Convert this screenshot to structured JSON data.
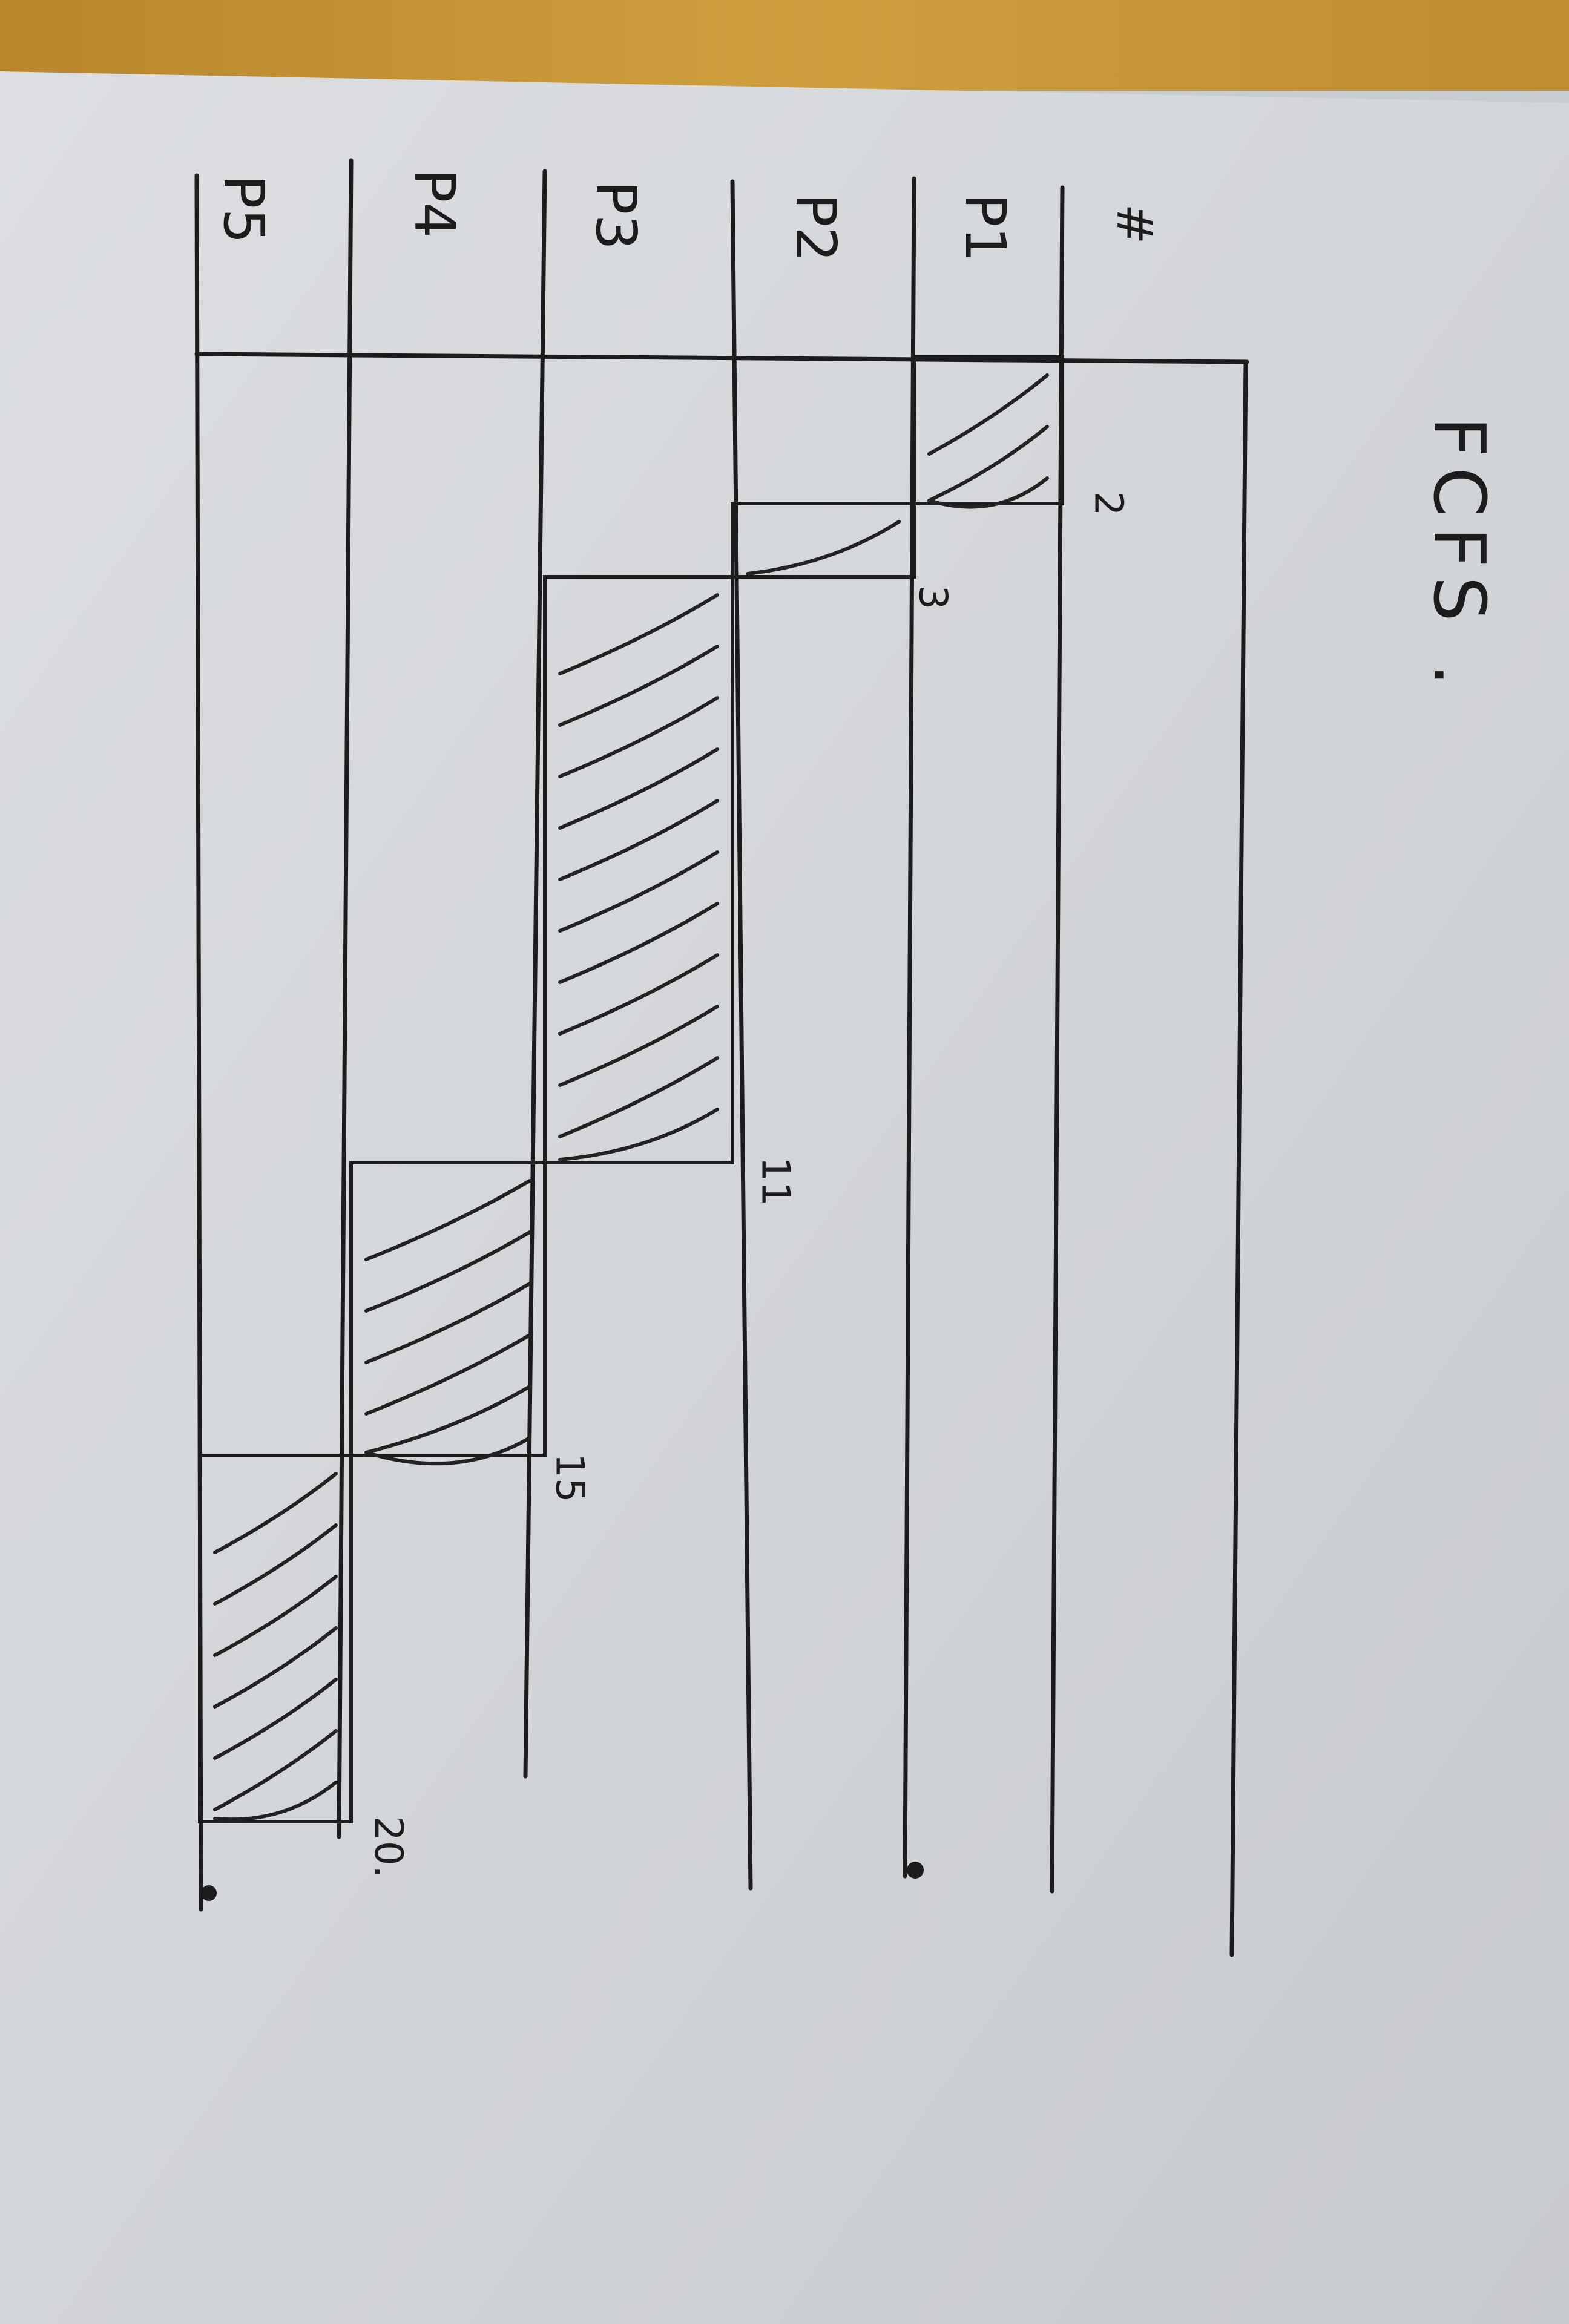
{
  "title": "FCFS .",
  "corner_mark": "#",
  "rows": [
    {
      "label": "P1",
      "start": 0,
      "end": 2
    },
    {
      "label": "P2",
      "start": 2,
      "end": 3
    },
    {
      "label": "P3",
      "start": 3,
      "end": 11
    },
    {
      "label": "P4",
      "start": 11,
      "end": 15
    },
    {
      "label": "P5",
      "start": 15,
      "end": 20
    }
  ],
  "time_marks": [
    "2",
    "3",
    "11",
    "15",
    "20."
  ],
  "colors": {
    "ink": "#1c1c1c",
    "paper": "#d3d6da",
    "table": "#c89a3a"
  }
}
